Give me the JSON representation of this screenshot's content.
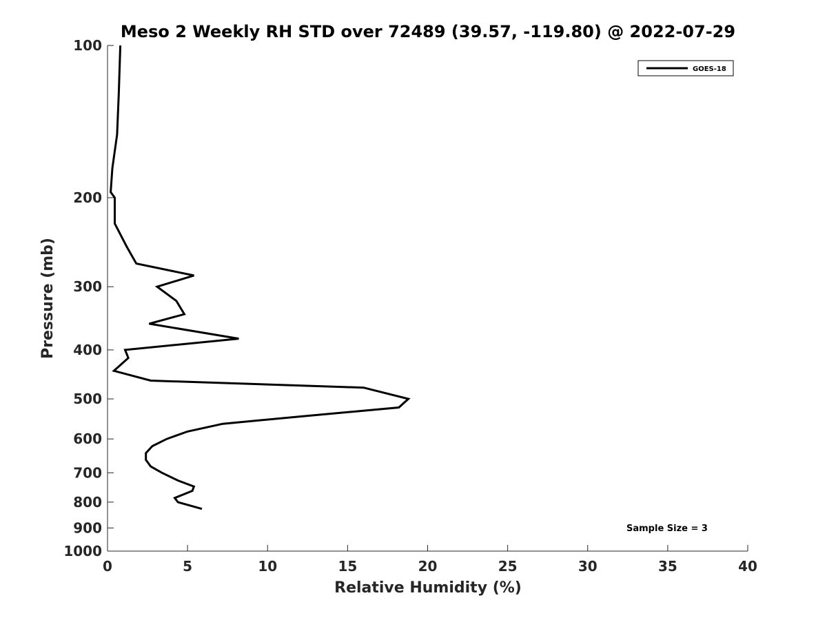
{
  "chart_data": {
    "type": "line",
    "title": "Meso 2 Weekly RH STD over 72489 (39.57, -119.80) @ 2022-07-29",
    "xlabel": "Relative Humidity (%)",
    "ylabel": "Pressure (mb)",
    "xlim": [
      0,
      40
    ],
    "ylim": [
      100,
      1000
    ],
    "y_scale": "log",
    "y_reversed": true,
    "x_ticks": [
      "0",
      "5",
      "10",
      "15",
      "20",
      "25",
      "30",
      "35",
      "40"
    ],
    "y_ticks": [
      "100",
      "200",
      "300",
      "400",
      "500",
      "600",
      "700",
      "800",
      "900",
      "1000"
    ],
    "grid": false,
    "legend_position": "top-right",
    "series": [
      {
        "name": "GOES-18",
        "color": "#000000",
        "x": [
          0.8,
          0.7,
          0.6,
          0.3,
          0.2,
          0.45,
          0.45,
          1.2,
          1.8,
          5.4,
          3.1,
          4.3,
          4.8,
          2.6,
          8.2,
          1.1,
          1.3,
          0.4,
          2.7,
          16.0,
          18.8,
          18.2,
          12.5,
          7.2,
          5.0,
          3.7,
          2.8,
          2.4,
          2.4,
          2.7,
          3.4,
          4.4,
          5.4,
          5.3,
          4.2,
          4.4,
          5.9
        ],
        "y": [
          100,
          125,
          150,
          175,
          195,
          200,
          225,
          250,
          270,
          285,
          300,
          320,
          340,
          355,
          380,
          400,
          415,
          440,
          460,
          475,
          500,
          520,
          540,
          560,
          580,
          600,
          620,
          640,
          660,
          680,
          700,
          725,
          745,
          760,
          785,
          800,
          825
        ]
      }
    ],
    "annotations": [
      "Sample Size = 3"
    ]
  }
}
